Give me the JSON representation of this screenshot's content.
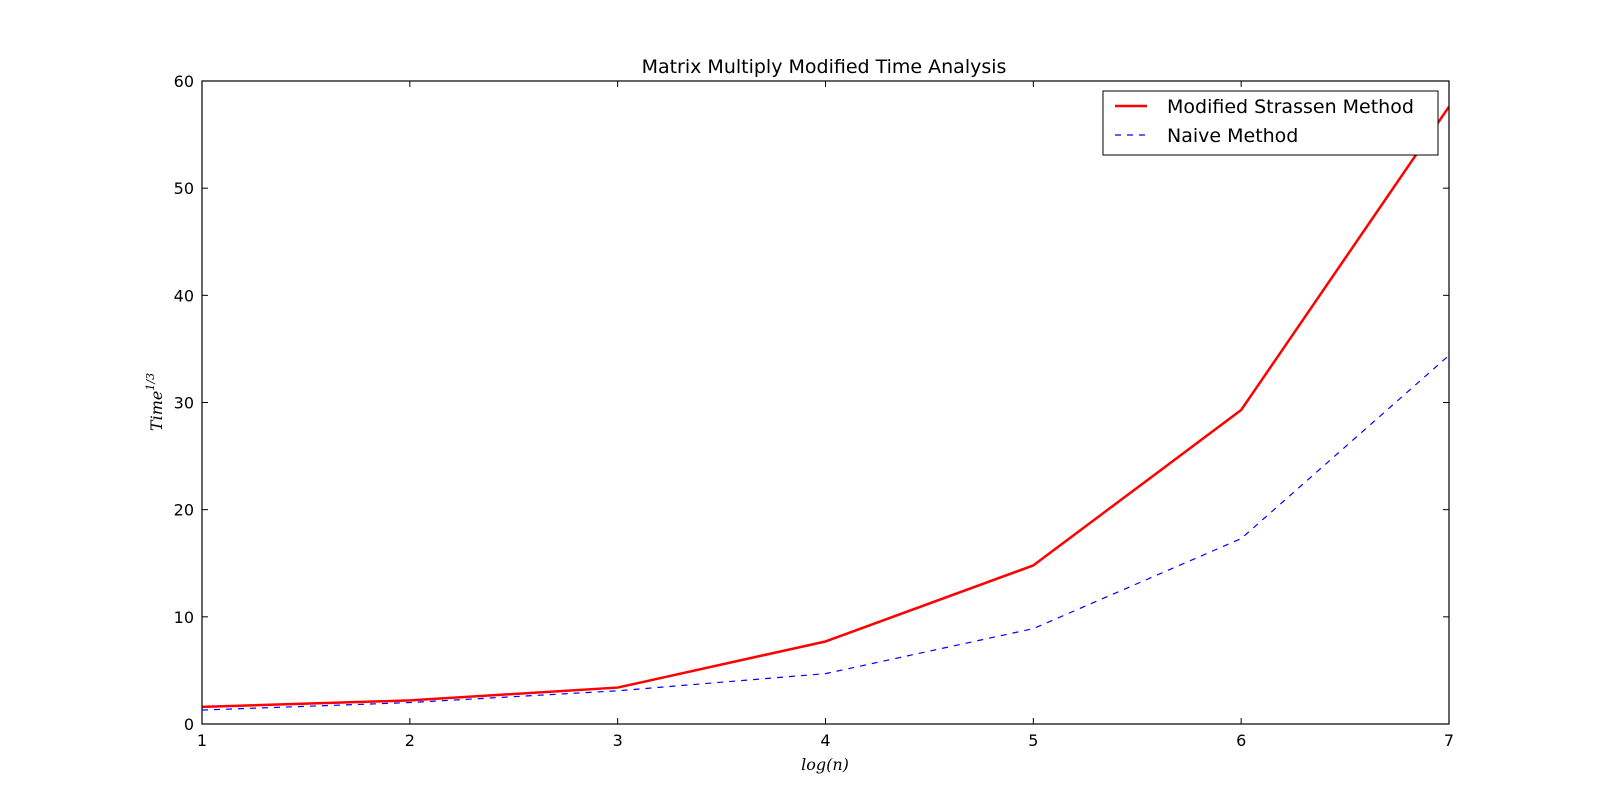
{
  "chart_data": {
    "type": "line",
    "title": "Matrix Multiply Modified Time Analysis",
    "xlabel": "log(n)",
    "ylabel": "Time^{1/3}",
    "ylabel_base": "Time",
    "ylabel_exp": "1/3",
    "xlim": [
      1,
      7
    ],
    "ylim": [
      0,
      60
    ],
    "xticks": [
      1,
      2,
      3,
      4,
      5,
      6,
      7
    ],
    "yticks": [
      0,
      10,
      20,
      30,
      40,
      50,
      60
    ],
    "grid": false,
    "legend_position": "top-right",
    "x": [
      1,
      2,
      3,
      4,
      5,
      6,
      7
    ],
    "series": [
      {
        "name": "Modified Strassen Method",
        "values": [
          1.6,
          2.2,
          3.4,
          7.7,
          14.8,
          29.3,
          57.6
        ],
        "color": "#ff0000",
        "style": "solid"
      },
      {
        "name": "Naive Method",
        "values": [
          1.3,
          2.0,
          3.1,
          4.7,
          8.9,
          17.3,
          34.4
        ],
        "color": "#0000ff",
        "style": "dashed"
      }
    ]
  }
}
